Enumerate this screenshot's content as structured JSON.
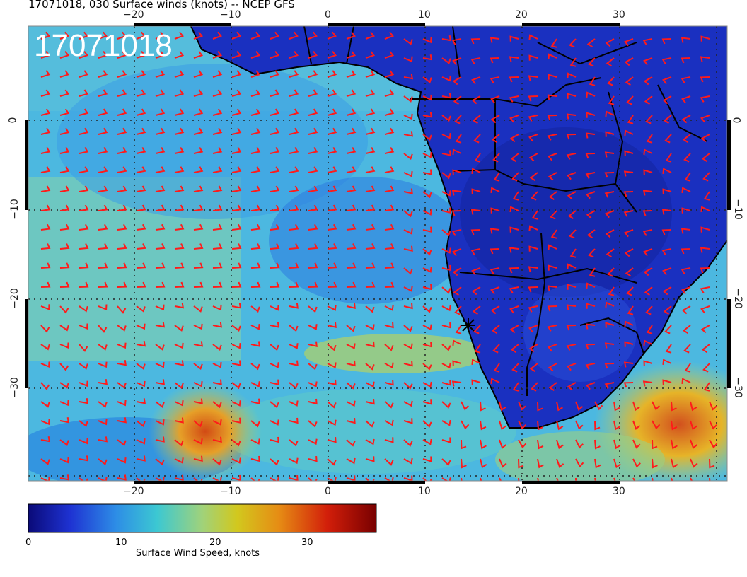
{
  "title": "17071018, 030 Surface winds (knots) -- NCEP GFS",
  "stamp": "17071018",
  "map": {
    "lon_ticks": [
      "−20",
      "−10",
      "0",
      "10",
      "20",
      "30"
    ],
    "lat_ticks": [
      "0",
      "−10",
      "−20",
      "−30"
    ],
    "lat_ticks_right": [
      "0",
      "−10",
      "−20",
      "−30"
    ],
    "ocean_colors": [
      "#3aa6e6",
      "#56c3dd",
      "#7fd0b0"
    ],
    "land_color": "#1e32c8",
    "barb_color": "#ff1a1a",
    "grid": true
  },
  "colorbar": {
    "label": "Surface Wind Speed, knots",
    "ticks": [
      "0",
      "10",
      "20",
      "30"
    ],
    "stops": [
      "#0a0a78",
      "#1e32d2",
      "#2d8ce6",
      "#3cc8d2",
      "#a0d27a",
      "#d2c81e",
      "#e68c14",
      "#d21e0a",
      "#780000"
    ]
  }
}
